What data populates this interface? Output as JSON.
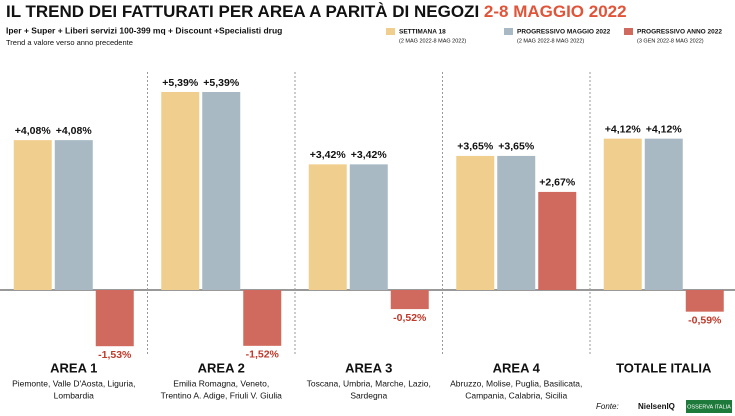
{
  "chart_data": {
    "type": "bar",
    "title": "IL TREND DEI FATTURATI PER AREA A PARITÀ DI NEGOZI",
    "title_highlight": "2-8 MAGGIO 2022",
    "subtitle": "Iper + Super + Liberi servizi 100-399 mq + Discount +Specialisti drug",
    "note": "Trend a valore verso anno precedente",
    "categories": [
      "AREA 1",
      "AREA 2",
      "AREA 3",
      "AREA 4",
      "TOTALE ITALIA"
    ],
    "category_details": [
      [
        "Piemonte, Valle D'Aosta, Liguria,",
        "Lombardia"
      ],
      [
        "Emilia Romagna, Veneto,",
        "Trentino A. Adige, Friuli V. Giulia"
      ],
      [
        "Toscana, Umbria, Marche, Lazio,",
        "Sardegna"
      ],
      [
        "Abruzzo, Molise, Puglia, Basilicata,",
        "Campania, Calabria, Sicilia"
      ],
      []
    ],
    "series": [
      {
        "name": "SETTIMANA 18",
        "period": "(2 MAG 2022-8 MAG 2022)",
        "color": "#f0cf8e",
        "values": [
          4.08,
          5.39,
          3.42,
          3.65,
          4.12
        ],
        "value_labels": [
          "+4,08%",
          "+5,39%",
          "+3,42%",
          "+3,65%",
          "+4,12%"
        ]
      },
      {
        "name": "PROGRESSIVO MAGGIO 2022",
        "period": "(2 MAG 2022-8 MAG 2022)",
        "color": "#a9b9c4",
        "values": [
          4.08,
          5.39,
          3.42,
          3.65,
          4.12
        ],
        "value_labels": [
          "+4,08%",
          "+5,39%",
          "+3,42%",
          "+3,65%",
          "+4,12%"
        ]
      },
      {
        "name": "PROGRESSIVO ANNO 2022",
        "period": "(3 GEN 2022-8 MAG 2022)",
        "color": "#d06a5e",
        "values": [
          -1.53,
          -1.52,
          -0.52,
          2.67,
          -0.59
        ],
        "value_labels": [
          "-1,53%",
          "-1,52%",
          "-0,52%",
          "+2,67%",
          "-0,59%"
        ]
      }
    ],
    "source_label": "Fonte:",
    "sources": [
      "NielsenIQ",
      "OSSERVA ITALIA"
    ]
  }
}
